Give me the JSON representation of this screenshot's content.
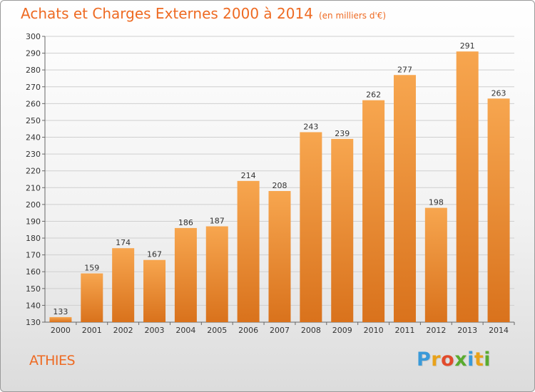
{
  "header": {
    "title": "Achats et Charges Externes 2000 à 2014",
    "unit": "(en milliers d'€)"
  },
  "place": "ATHIES",
  "logo": {
    "letters": [
      "P",
      "r",
      "o",
      "x",
      "i",
      "t",
      "i"
    ],
    "colors": [
      "#3a9ad9",
      "#e8a21a",
      "#e24b2c",
      "#5aab2f",
      "#3a9ad9",
      "#e8a21a",
      "#5aab2f"
    ]
  },
  "colors": {
    "bar_top": "#f7a64f",
    "bar_bottom": "#d9721c",
    "accent": "#ee6a22"
  },
  "chart_data": {
    "type": "bar",
    "categories": [
      "2000",
      "2001",
      "2002",
      "2003",
      "2004",
      "2005",
      "2006",
      "2007",
      "2008",
      "2009",
      "2010",
      "2011",
      "2012",
      "2013",
      "2014"
    ],
    "values": [
      133,
      159,
      174,
      167,
      186,
      187,
      214,
      208,
      243,
      239,
      262,
      277,
      198,
      291,
      263
    ],
    "ylim": [
      130,
      300
    ],
    "yticks": [
      130,
      140,
      150,
      160,
      170,
      180,
      190,
      200,
      210,
      220,
      230,
      240,
      250,
      260,
      270,
      280,
      290,
      300
    ],
    "grid": true
  }
}
